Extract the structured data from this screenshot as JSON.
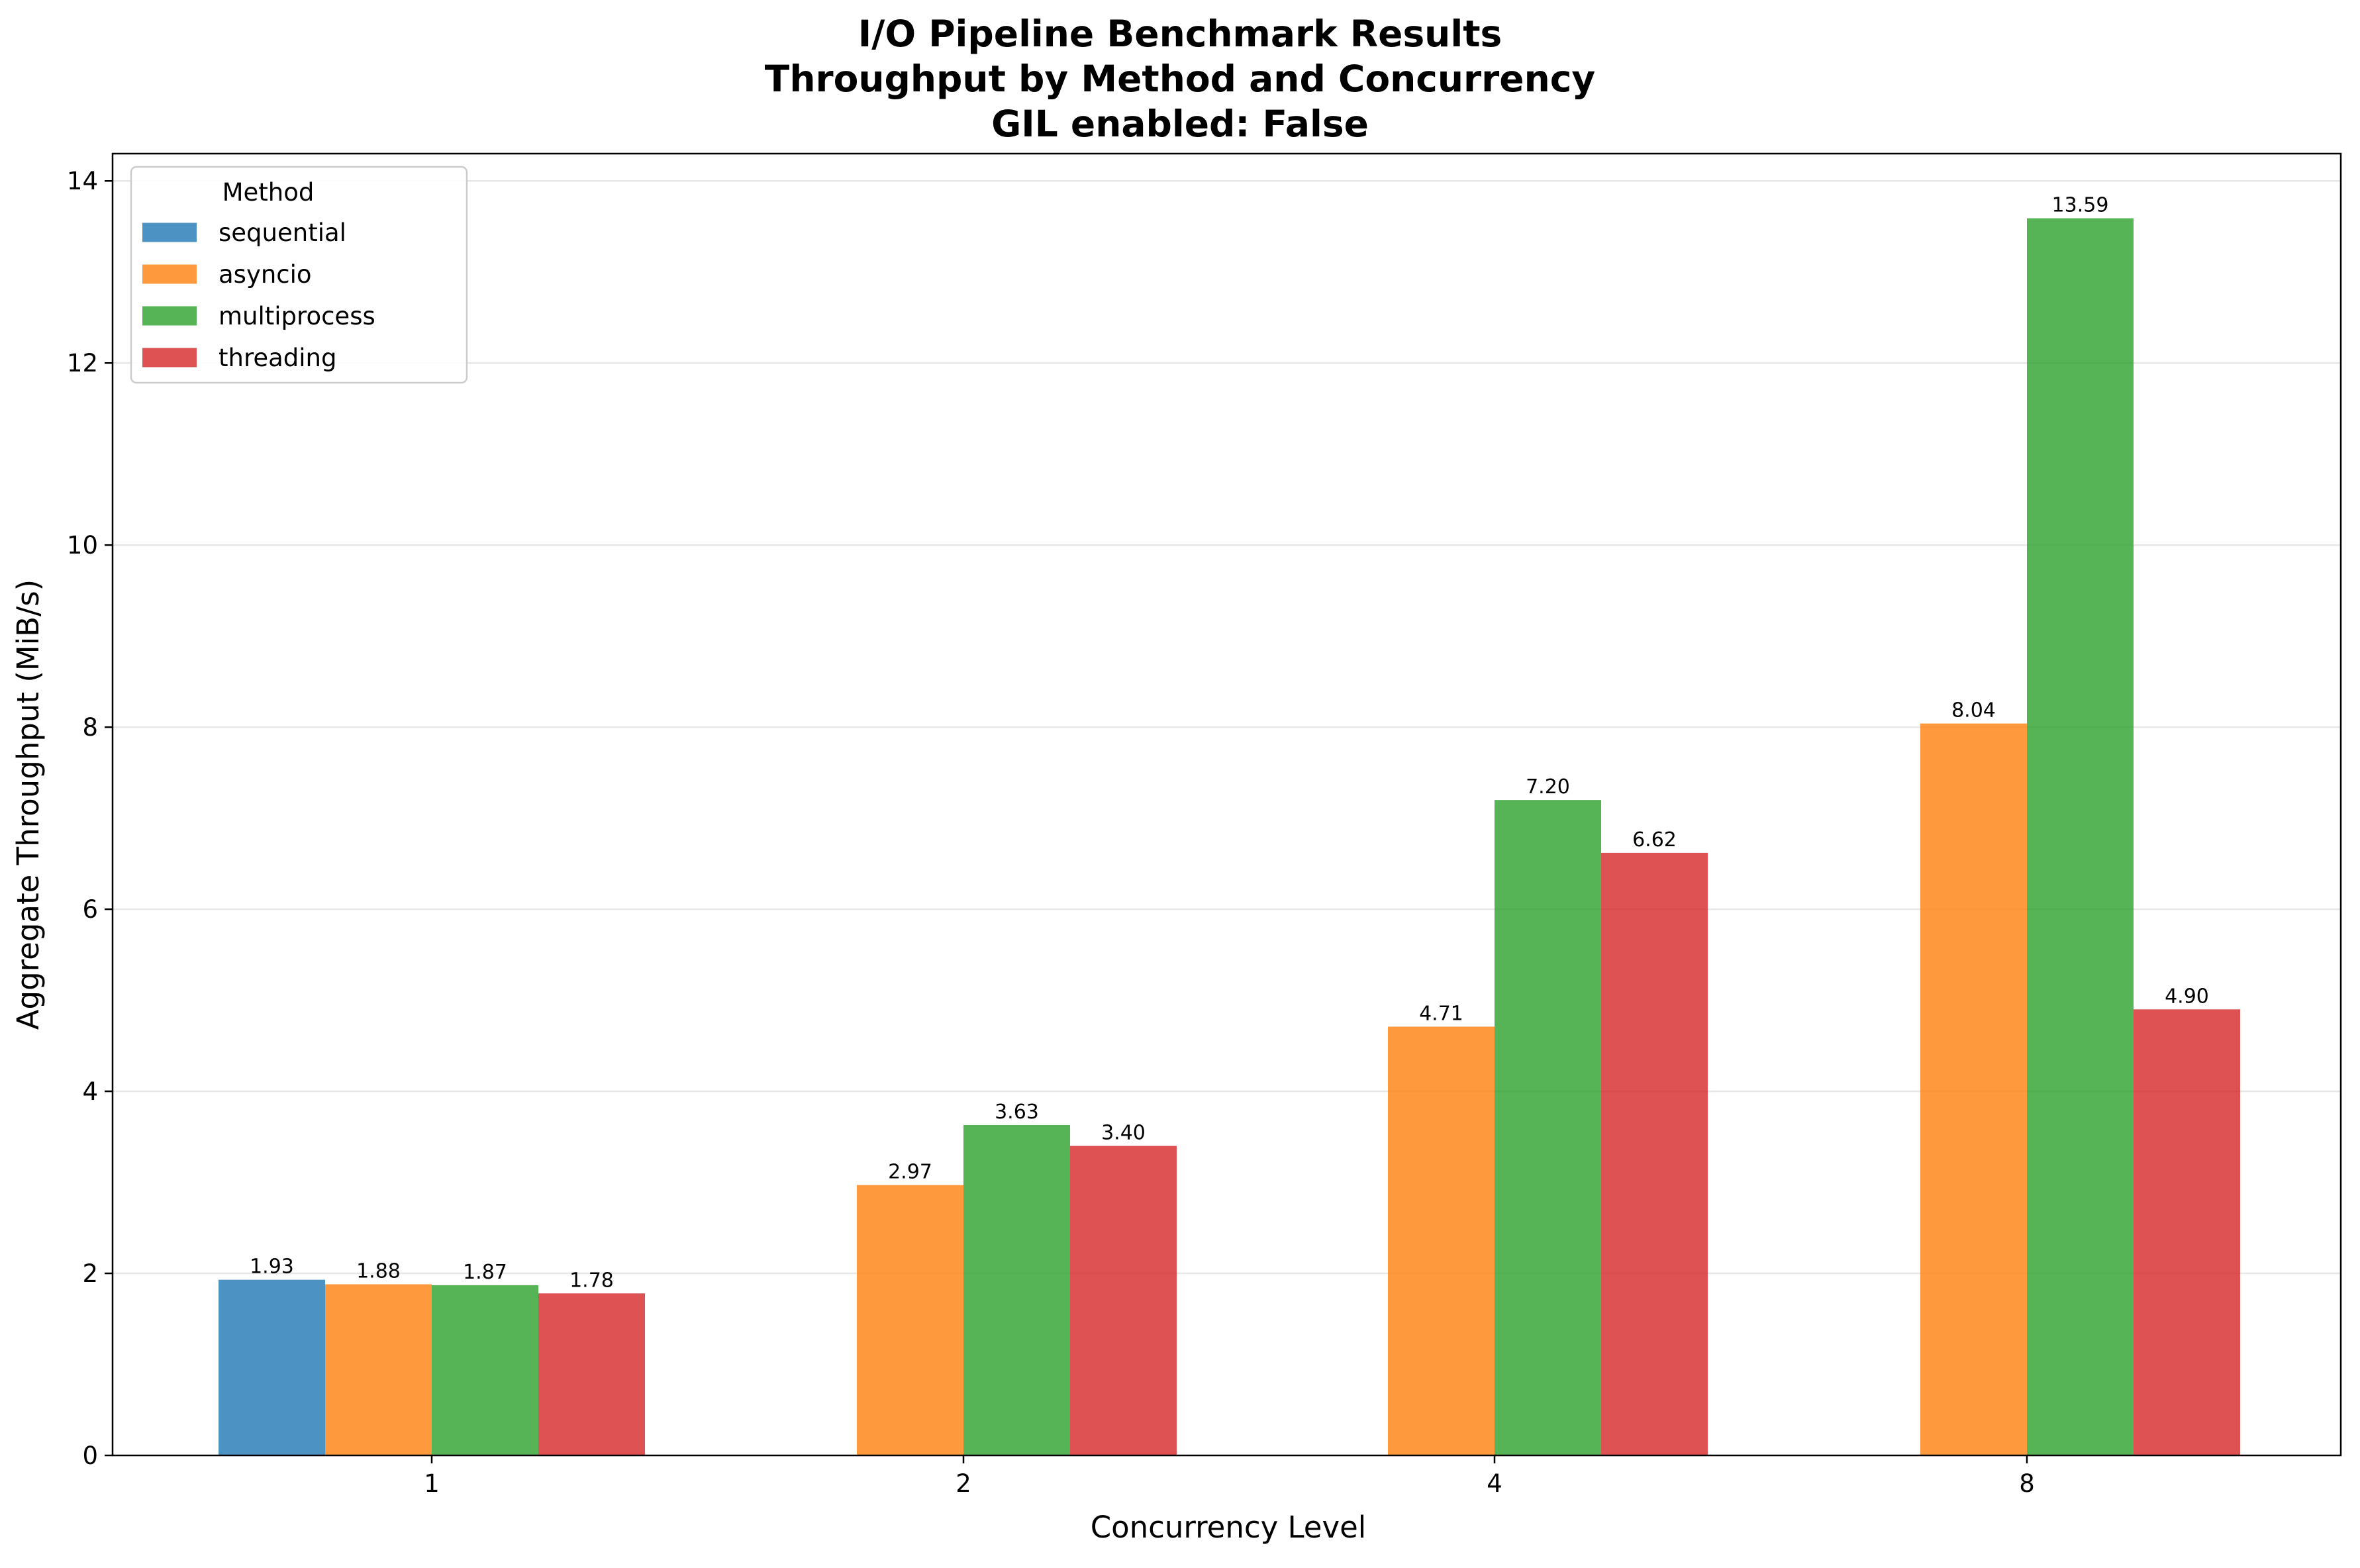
{
  "chart_data": {
    "type": "bar",
    "title_lines": [
      "I/O Pipeline Benchmark Results",
      "Throughput by Method and Concurrency",
      "GIL enabled: False"
    ],
    "xlabel": "Concurrency Level",
    "ylabel": "Aggregate Throughput (MiB/s)",
    "categories": [
      "1",
      "2",
      "4",
      "8"
    ],
    "ylim": [
      0,
      14.3
    ],
    "yticks": [
      0,
      2,
      4,
      6,
      8,
      10,
      12,
      14
    ],
    "grid": "y-major",
    "legend": {
      "title": "Method",
      "placement": "top-left"
    },
    "series": [
      {
        "name": "sequential",
        "color": "#1f77b4",
        "values": [
          1.93,
          null,
          null,
          null
        ],
        "labels": [
          "1.93",
          null,
          null,
          null
        ]
      },
      {
        "name": "asyncio",
        "color": "#ff7f0e",
        "values": [
          1.88,
          2.97,
          4.71,
          8.04
        ],
        "labels": [
          "1.88",
          "2.97",
          "4.71",
          "8.04"
        ]
      },
      {
        "name": "multiprocess",
        "color": "#2ca02c",
        "values": [
          1.87,
          3.63,
          7.2,
          13.59
        ],
        "labels": [
          "1.87",
          "3.63",
          "7.20",
          "13.59"
        ]
      },
      {
        "name": "threading",
        "color": "#d62728",
        "values": [
          1.78,
          3.4,
          6.62,
          4.9
        ],
        "labels": [
          "1.78",
          "3.40",
          "6.62",
          "4.90"
        ]
      }
    ]
  }
}
